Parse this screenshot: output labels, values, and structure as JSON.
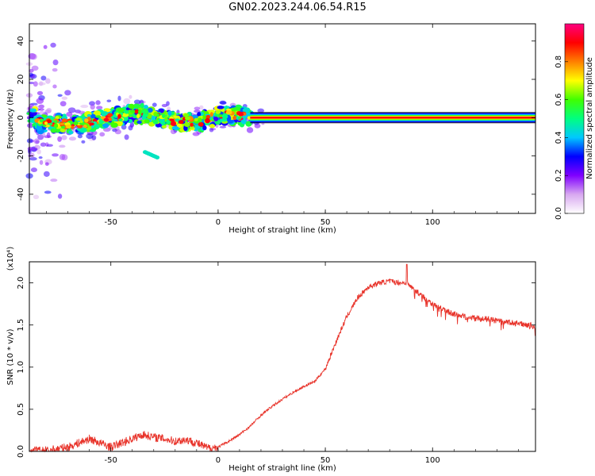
{
  "title": "GN02.2023.244.06.54.R15",
  "chart_data": [
    {
      "type": "heatmap",
      "xlabel": "Height of straight line (km)",
      "ylabel": "Frequency (Hz)",
      "xlim": [
        -88,
        148
      ],
      "ylim": [
        -50,
        49
      ],
      "xticks": [
        -50,
        0,
        50,
        100
      ],
      "yticks": [
        -40,
        -20,
        0,
        20,
        40
      ],
      "colorbar": {
        "label": "Normalized spectral amplitude",
        "range": [
          0,
          1
        ],
        "ticks": [
          0.0,
          0.2,
          0.4,
          0.6,
          0.8
        ],
        "tick_labels": [
          "0.0",
          "0.2",
          "0.4",
          "0.6",
          "0.8"
        ],
        "colors": [
          "#ffffff",
          "#d8a8f0",
          "#8000ff",
          "#0000ff",
          "#00c8ff",
          "#00ff80",
          "#40ff00",
          "#ffff00",
          "#ff8000",
          "#ff0000",
          "#ff0080"
        ]
      },
      "ridge": [
        {
          "x": -85,
          "y": -3
        },
        {
          "x": -75,
          "y": -3
        },
        {
          "x": -65,
          "y": -4
        },
        {
          "x": -55,
          "y": -1
        },
        {
          "x": -45,
          "y": 1
        },
        {
          "x": -35,
          "y": 2
        },
        {
          "x": -25,
          "y": -1
        },
        {
          "x": -15,
          "y": -2
        },
        {
          "x": -8,
          "y": -2
        },
        {
          "x": 0,
          "y": 1
        },
        {
          "x": 5,
          "y": 2
        },
        {
          "x": 10,
          "y": 1
        },
        {
          "x": 15,
          "y": 0
        },
        {
          "x": 148,
          "y": 0
        }
      ]
    },
    {
      "type": "line",
      "xlabel": "Height of straight line (km)",
      "ylabel": "SNR (10 * v/v)",
      "y_multiplier": "(x10⁴)",
      "xlim": [
        -88,
        148
      ],
      "ylim": [
        0,
        2.25
      ],
      "xticks": [
        -50,
        0,
        50,
        100
      ],
      "yticks": [
        0.0,
        0.5,
        1.0,
        1.5,
        2.0
      ],
      "ytick_labels": [
        "0.0",
        "0.5",
        "1.0",
        "1.5",
        "2.0"
      ],
      "color": "#e8332a",
      "series": [
        {
          "x": [
            -88,
            -80,
            -70,
            -65,
            -60,
            -55,
            -50,
            -45,
            -40,
            -35,
            -30,
            -25,
            -20,
            -15,
            -10,
            -5,
            0,
            5,
            10,
            15,
            20,
            25,
            30,
            35,
            40,
            45,
            50,
            55,
            60,
            65,
            70,
            75,
            80,
            85,
            88,
            90,
            95,
            100,
            105,
            110,
            115,
            120,
            125,
            130,
            135,
            140,
            145,
            148
          ],
          "y": [
            0.01,
            0.01,
            0.05,
            0.1,
            0.15,
            0.1,
            0.05,
            0.1,
            0.15,
            0.2,
            0.17,
            0.15,
            0.12,
            0.14,
            0.1,
            0.04,
            0.05,
            0.12,
            0.2,
            0.3,
            0.43,
            0.53,
            0.62,
            0.7,
            0.77,
            0.83,
            0.98,
            1.3,
            1.6,
            1.82,
            1.95,
            2.0,
            2.02,
            2.0,
            2.0,
            1.95,
            1.85,
            1.75,
            1.68,
            1.63,
            1.6,
            1.58,
            1.57,
            1.55,
            1.53,
            1.52,
            1.5,
            1.48
          ]
        }
      ]
    }
  ]
}
